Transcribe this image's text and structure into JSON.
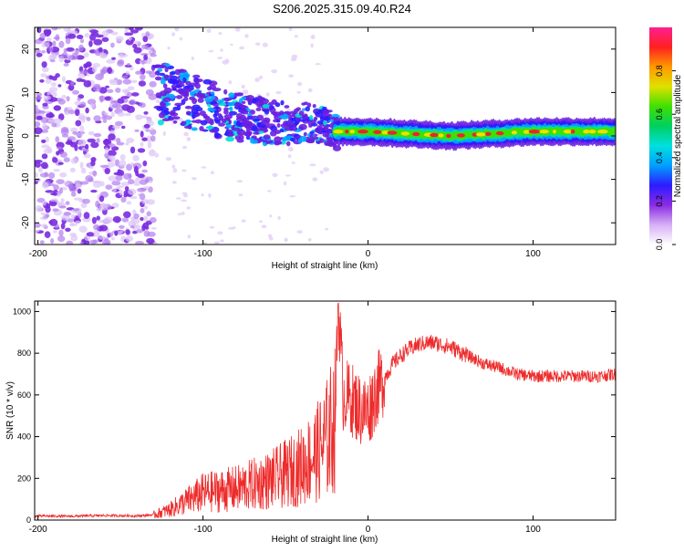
{
  "page_title": "S206.2025.315.09.40.R24",
  "colors": {
    "axis": "#000000",
    "snr_line": "#ee2b2b",
    "spectrogram_low": "#7a2be0",
    "spectrogram_peak": "#e8262c"
  },
  "chart_data": [
    {
      "type": "heatmap",
      "name": "spectrogram",
      "xlabel": "Height of straight line (km)",
      "ylabel": "Frequency (Hz)",
      "xlim": [
        -202,
        150
      ],
      "ylim": [
        -25,
        25
      ],
      "xticks": [
        -200,
        -100,
        0,
        100
      ],
      "yticks": [
        -20,
        -10,
        0,
        10,
        20
      ],
      "xticklabels": [
        "-200",
        "-100",
        "0",
        "100"
      ],
      "yticklabels": [
        "-20",
        "-10",
        "0",
        "10",
        "20"
      ],
      "ridge": [
        {
          "x": -125,
          "y": 10
        },
        {
          "x": -100,
          "y": 7
        },
        {
          "x": -75,
          "y": 4
        },
        {
          "x": -50,
          "y": 3
        },
        {
          "x": -30,
          "y": 3
        },
        {
          "x": -20,
          "y": 1
        },
        {
          "x": 0,
          "y": 1
        },
        {
          "x": 50,
          "y": 0
        },
        {
          "x": 100,
          "y": 1
        },
        {
          "x": 150,
          "y": 1
        }
      ],
      "colorbar": {
        "label": "Normalized spectral amplitude",
        "ticks": [
          0.0,
          0.2,
          0.4,
          0.6,
          0.8
        ],
        "ticklabels": [
          "0.0",
          "0.2",
          "0.4",
          "0.6",
          "0.8"
        ],
        "range": [
          0,
          1
        ],
        "colors": [
          "#ffffff",
          "#d6b0f5",
          "#8a2be2",
          "#2d1bff",
          "#00a0ff",
          "#00e0e0",
          "#00d060",
          "#40e000",
          "#e0e000",
          "#ff9900",
          "#ff2020",
          "#ff2090"
        ]
      }
    },
    {
      "type": "line",
      "name": "snr",
      "xlabel": "Height of straight line (km)",
      "ylabel": "SNR (10 * v/v)",
      "xlim": [
        -202,
        150
      ],
      "ylim": [
        0,
        1050
      ],
      "xticks": [
        -200,
        -100,
        0,
        100
      ],
      "yticks": [
        0,
        200,
        400,
        600,
        800,
        1000
      ],
      "xticklabels": [
        "-200",
        "-100",
        "0",
        "100"
      ],
      "yticklabels": [
        "0",
        "200",
        "400",
        "600",
        "800",
        "1000"
      ],
      "series": [
        {
          "name": "SNR",
          "x": [
            -202,
            -180,
            -160,
            -140,
            -130,
            -120,
            -110,
            -100,
            -90,
            -80,
            -70,
            -60,
            -50,
            -40,
            -30,
            -25,
            -20,
            -18,
            -15,
            -10,
            -5,
            0,
            5,
            10,
            15,
            20,
            25,
            30,
            35,
            40,
            45,
            50,
            60,
            70,
            80,
            90,
            100,
            110,
            120,
            130,
            140,
            150
          ],
          "values": [
            20,
            18,
            22,
            20,
            25,
            50,
            90,
            130,
            140,
            150,
            170,
            190,
            220,
            260,
            330,
            390,
            480,
            1040,
            600,
            580,
            530,
            520,
            620,
            680,
            750,
            790,
            820,
            840,
            850,
            850,
            840,
            830,
            790,
            750,
            730,
            700,
            690,
            690,
            690,
            690,
            690,
            700
          ]
        }
      ]
    }
  ]
}
